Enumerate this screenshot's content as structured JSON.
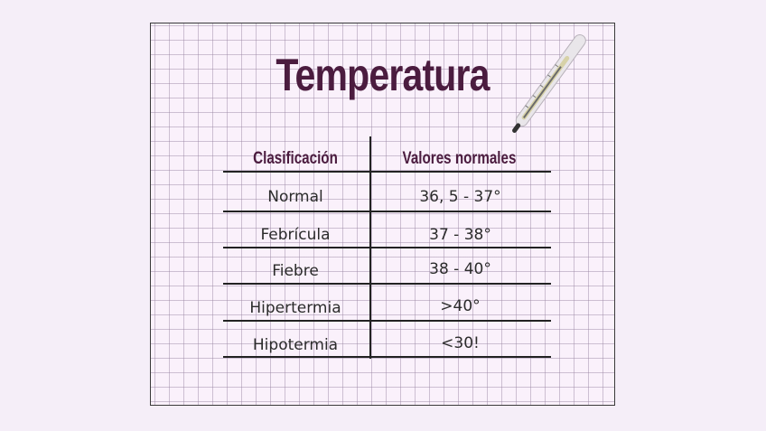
{
  "title": "Temperatura",
  "table": {
    "headers": [
      "Clasificación",
      "Valores normales"
    ],
    "rows": [
      {
        "label": "Normal",
        "value": "36, 5 - 37°"
      },
      {
        "label": "Febrícula",
        "value": "37 - 38°"
      },
      {
        "label": "Fiebre",
        "value": "38 - 40°"
      },
      {
        "label": "Hipertermia",
        "value": ">40°"
      },
      {
        "label": "Hipotermia",
        "value": "<30!"
      }
    ]
  }
}
